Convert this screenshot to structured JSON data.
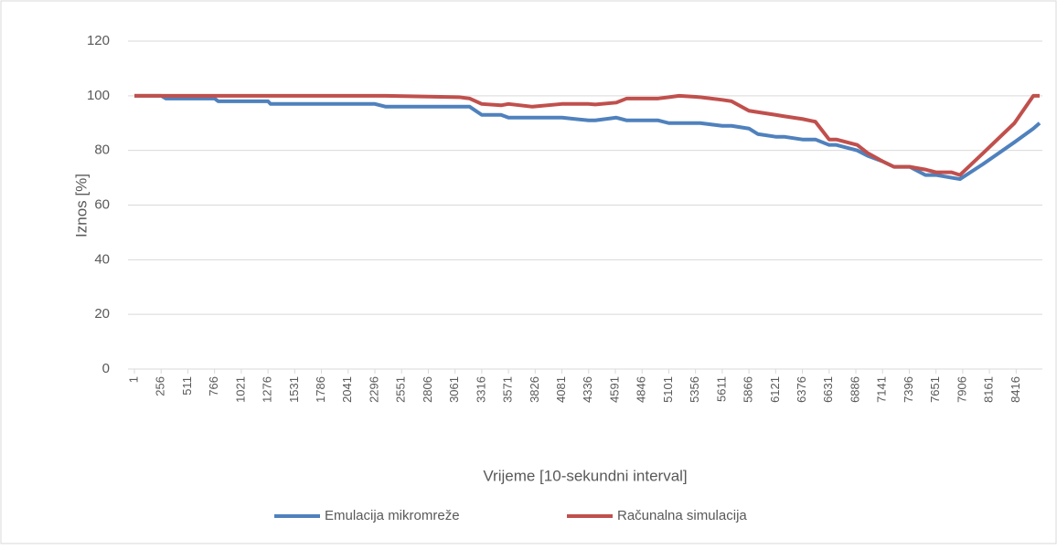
{
  "chart_data": {
    "type": "line",
    "ylabel": "Iznos [%]",
    "xlabel": "Vrijeme [10-sekundni interval]",
    "x": [
      1,
      256,
      300,
      766,
      800,
      1276,
      1300,
      2296,
      2400,
      3100,
      3200,
      3316,
      3500,
      3571,
      3800,
      4081,
      4336,
      4400,
      4600,
      4700,
      5000,
      5101,
      5200,
      5400,
      5611,
      5700,
      5866,
      5950,
      6121,
      6200,
      6376,
      6500,
      6631,
      6700,
      6900,
      7000,
      7141,
      7250,
      7400,
      7550,
      7650,
      7800,
      7880,
      8100,
      8400,
      8580,
      8640
    ],
    "series": [
      {
        "name": "Emulacija mikromreže",
        "color": "#4f81bd",
        "values": [
          100,
          100,
          99,
          99,
          98,
          98,
          97,
          97,
          96,
          96,
          96,
          93,
          93,
          92,
          92,
          92,
          91,
          91,
          92,
          91,
          91,
          90,
          90,
          90,
          89,
          89,
          88,
          86,
          85,
          85,
          84,
          84,
          82,
          82,
          80,
          78,
          76,
          74,
          74,
          71,
          71,
          70,
          69.5,
          75,
          83,
          88,
          90
        ]
      },
      {
        "name": "Računalna simulacija",
        "color": "#c0504d",
        "values": [
          100,
          100,
          100,
          100,
          100,
          100,
          100,
          100,
          100,
          99.5,
          99,
          97,
          96.5,
          97,
          96,
          97,
          97,
          96.8,
          97.5,
          99,
          99,
          99.5,
          100,
          99.5,
          98.5,
          98,
          94.5,
          94,
          93,
          92.5,
          91.5,
          90.5,
          84,
          84,
          82,
          79,
          76,
          74,
          74,
          73,
          72,
          72,
          71,
          79,
          90,
          100,
          100
        ]
      }
    ],
    "xlim": [
      1,
      8640
    ],
    "xticks": [
      1,
      256,
      511,
      766,
      1021,
      1276,
      1531,
      1786,
      2041,
      2296,
      2551,
      2806,
      3061,
      3316,
      3571,
      3826,
      4081,
      4336,
      4591,
      4846,
      5101,
      5356,
      5611,
      5866,
      6121,
      6376,
      6631,
      6886,
      7141,
      7396,
      7651,
      7906,
      8161,
      8416
    ],
    "ylim": [
      0,
      120
    ],
    "yticks": [
      0,
      20,
      40,
      60,
      80,
      100,
      120
    ],
    "grid": true,
    "legend": "bottom"
  }
}
